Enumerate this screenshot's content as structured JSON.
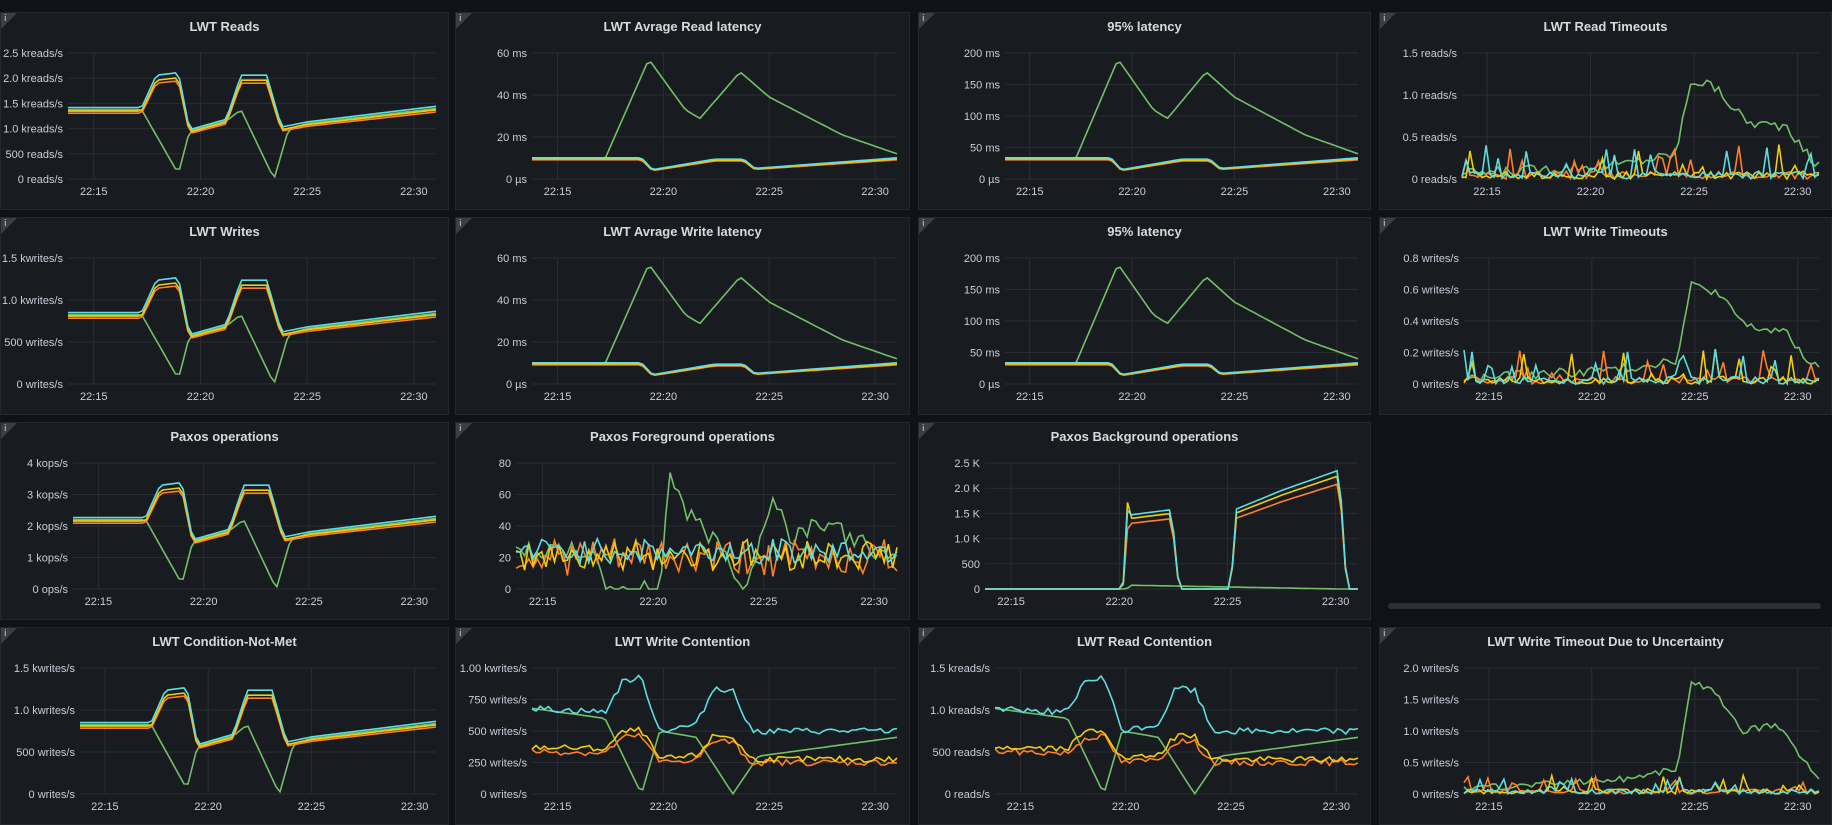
{
  "x_ticks": [
    "22:15",
    "22:20",
    "22:25",
    "22:30"
  ],
  "info_glyph": "i",
  "colors": {
    "green": "#73bf69",
    "yellow": "#f2cc0c",
    "blue": "#5cdee0",
    "orange": "#ff7f2a"
  },
  "panels": [
    {
      "title": "LWT Reads",
      "y_ticks": [
        "2.5 kreads/s",
        "2.0 kreads/s",
        "1.5 kreads/s",
        "1.0 kreads/s",
        "500 reads/s",
        "0 reads/s"
      ]
    },
    {
      "title": "LWT Avrage Read latency",
      "y_ticks": [
        "60 ms",
        "40 ms",
        "20 ms",
        "0 µs"
      ]
    },
    {
      "title": "95% latency",
      "y_ticks": [
        "200 ms",
        "150 ms",
        "100 ms",
        "50 ms",
        "0 µs"
      ]
    },
    {
      "title": "LWT Read Timeouts",
      "y_ticks": [
        "1.5 reads/s",
        "1.0 reads/s",
        "0.5 reads/s",
        "0 reads/s"
      ]
    },
    {
      "title": "LWT Writes",
      "y_ticks": [
        "1.5 kwrites/s",
        "1.0 kwrites/s",
        "500 writes/s",
        "0 writes/s"
      ]
    },
    {
      "title": "LWT Avrage Write latency",
      "y_ticks": [
        "60 ms",
        "40 ms",
        "20 ms",
        "0 µs"
      ]
    },
    {
      "title": "95% latency",
      "y_ticks": [
        "200 ms",
        "150 ms",
        "100 ms",
        "50 ms",
        "0 µs"
      ]
    },
    {
      "title": "LWT Write Timeouts",
      "y_ticks": [
        "0.8 writes/s",
        "0.6 writes/s",
        "0.4 writes/s",
        "0.2 writes/s",
        "0 writes/s"
      ]
    },
    {
      "title": "Paxos operations",
      "y_ticks": [
        "4 kops/s",
        "3 kops/s",
        "2 kops/s",
        "1 kops/s",
        "0 ops/s"
      ]
    },
    {
      "title": "Paxos Foreground operations",
      "y_ticks": [
        "80",
        "60",
        "40",
        "20",
        "0"
      ]
    },
    {
      "title": "Paxos Background operations",
      "y_ticks": [
        "2.5 K",
        "2.0 K",
        "1.5 K",
        "1.0 K",
        "500",
        "0"
      ]
    },
    {
      "title": "LWT Condition-Not-Met",
      "y_ticks": [
        "1.5 kwrites/s",
        "1.0 kwrites/s",
        "500 writes/s",
        "0 writes/s"
      ]
    },
    {
      "title": "LWT Write Contention",
      "y_ticks": [
        "1.00 kwrites/s",
        "750 writes/s",
        "500 writes/s",
        "250 writes/s",
        "0 writes/s"
      ]
    },
    {
      "title": "LWT Read Contention",
      "y_ticks": [
        "1.5 kreads/s",
        "1.0 kreads/s",
        "500 reads/s",
        "0 reads/s"
      ]
    },
    {
      "title": "LWT Write Timeout Due to Uncertainty",
      "y_ticks": [
        "2.0 writes/s",
        "1.5 writes/s",
        "1.0 writes/s",
        "0.5 writes/s",
        "0 writes/s"
      ]
    }
  ]
}
